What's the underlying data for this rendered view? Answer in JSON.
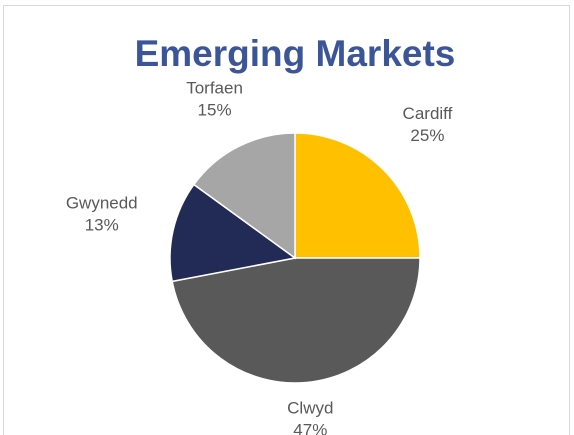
{
  "chart_data": {
    "type": "pie",
    "title": "Emerging Markets",
    "categories": [
      "Cardiff",
      "Clwyd",
      "Gwynedd",
      "Torfaen"
    ],
    "values": [
      25,
      47,
      13,
      15
    ],
    "value_labels": [
      "25%",
      "47%",
      "13%",
      "15%"
    ],
    "colors": [
      "#ffc000",
      "#595959",
      "#222a56",
      "#a6a6a6"
    ]
  }
}
